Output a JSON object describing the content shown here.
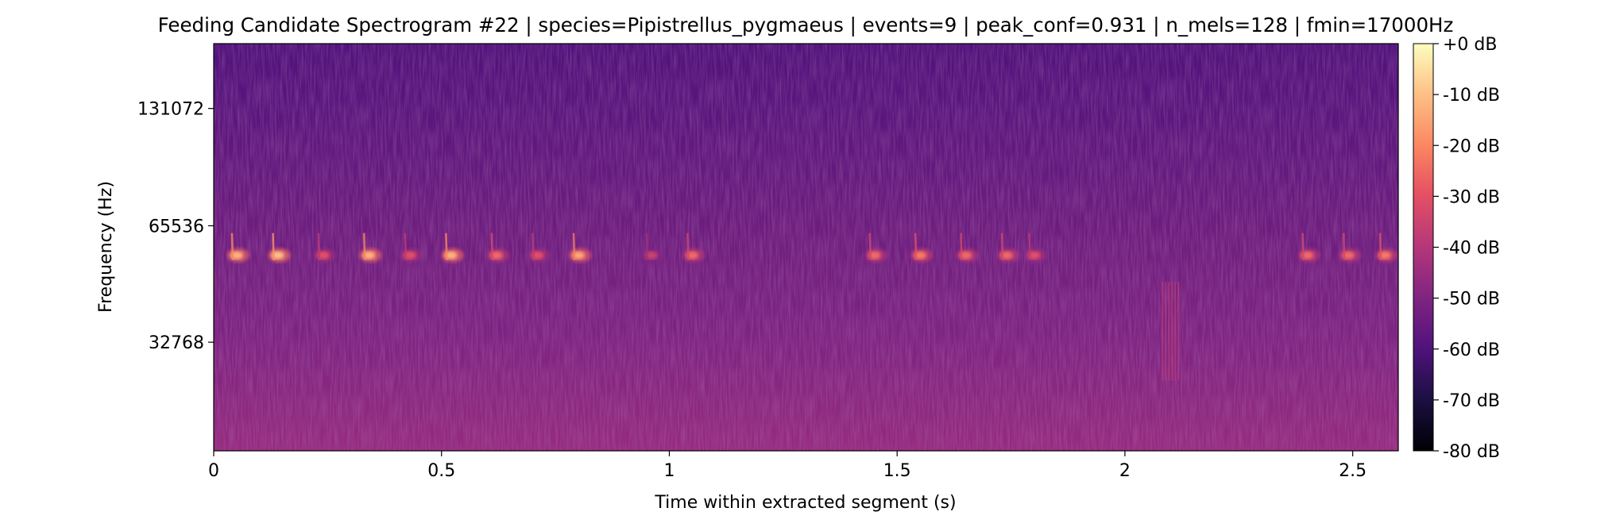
{
  "chart_data": {
    "type": "heatmap",
    "title": "Feeding Candidate Spectrogram #22 | species=Pipistrellus_pygmaeus | events=9 | peak_conf=0.931 | n_mels=128 | fmin=17000Hz",
    "xlabel": "Time within extracted segment (s)",
    "ylabel": "Frequency (Hz)",
    "xlim": [
      0,
      2.6
    ],
    "x_ticks": [
      0,
      0.5,
      1,
      1.5,
      2,
      2.5
    ],
    "x_tick_labels": [
      "0",
      "0.5",
      "1",
      "1.5",
      "2",
      "2.5"
    ],
    "y_scale": "mel",
    "ylim": [
      17000,
      192000
    ],
    "y_ticks": [
      32768,
      65536,
      131072
    ],
    "y_tick_labels": [
      "32768",
      "65536",
      "131072"
    ],
    "colormap": "magma",
    "colorbar": {
      "min_db": -80,
      "max_db": 0,
      "ticks": [
        0,
        -10,
        -20,
        -30,
        -40,
        -50,
        -60,
        -70,
        -80
      ],
      "tick_labels": [
        "+0 dB",
        "-10 dB",
        "-20 dB",
        "-30 dB",
        "-40 dB",
        "-50 dB",
        "-60 dB",
        "-70 dB",
        "-80 dB"
      ]
    },
    "call_band_hz": 55000,
    "calls": [
      {
        "t": 0.04,
        "level_db": -12
      },
      {
        "t": 0.13,
        "level_db": -10
      },
      {
        "t": 0.23,
        "level_db": -30
      },
      {
        "t": 0.33,
        "level_db": -12
      },
      {
        "t": 0.42,
        "level_db": -30
      },
      {
        "t": 0.51,
        "level_db": -12
      },
      {
        "t": 0.61,
        "level_db": -25
      },
      {
        "t": 0.7,
        "level_db": -30
      },
      {
        "t": 0.79,
        "level_db": -14
      },
      {
        "t": 0.95,
        "level_db": -35
      },
      {
        "t": 1.04,
        "level_db": -25
      },
      {
        "t": 1.44,
        "level_db": -25
      },
      {
        "t": 1.54,
        "level_db": -22
      },
      {
        "t": 1.64,
        "level_db": -25
      },
      {
        "t": 1.73,
        "level_db": -25
      },
      {
        "t": 1.79,
        "level_db": -30
      },
      {
        "t": 2.39,
        "level_db": -25
      },
      {
        "t": 2.48,
        "level_db": -25
      },
      {
        "t": 2.56,
        "level_db": -22
      }
    ],
    "broadband_event": {
      "t": 2.1,
      "f_low_hz": 26000,
      "f_high_hz": 47000,
      "level_db": -38
    }
  }
}
